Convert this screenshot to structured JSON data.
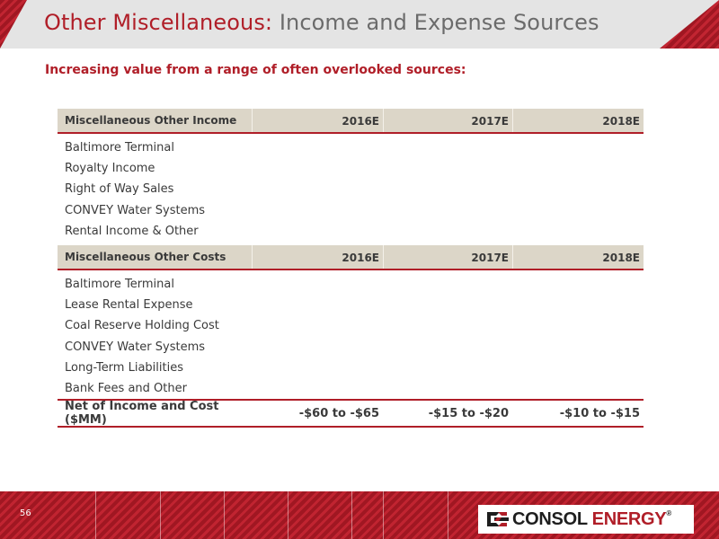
{
  "header": {
    "title_accent": "Other Miscellaneous:",
    "title_rest": "Income and Expense Sources"
  },
  "subtitle": "Increasing value from a range of often overlooked sources:",
  "income": {
    "heading": "Miscellaneous Other Income",
    "columns": [
      "2016E",
      "2017E",
      "2018E"
    ],
    "items": [
      "Baltimore Terminal",
      "Royalty Income",
      "Right of Way Sales",
      "CONVEY Water Systems",
      "Rental Income & Other"
    ]
  },
  "costs": {
    "heading": "Miscellaneous Other Costs",
    "columns": [
      "2016E",
      "2017E",
      "2018E"
    ],
    "items": [
      "Baltimore Terminal",
      "Lease Rental Expense",
      "Coal Reserve Holding Cost",
      "CONVEY Water Systems",
      "Long-Term Liabilities",
      "Bank Fees and Other"
    ]
  },
  "net": {
    "label": "Net of Income and Cost ($MM)",
    "values": [
      "-$60 to -$65",
      "-$15 to -$20",
      "-$10 to -$15"
    ]
  },
  "footer": {
    "page_number": "56",
    "logo_word_1": "CONSOL",
    "logo_word_2": "ENERGY",
    "logo_reg": "®"
  },
  "colors": {
    "brand_red": "#b01e28",
    "header_bg": "#e4e4e4",
    "table_header_bg": "#dcd6c8"
  }
}
